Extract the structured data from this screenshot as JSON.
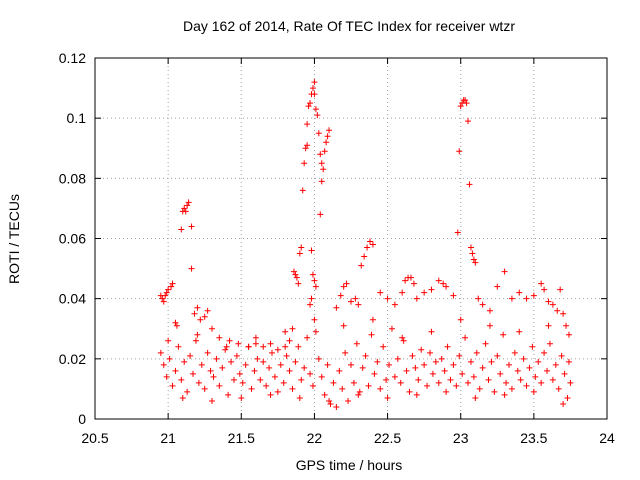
{
  "chart_data": {
    "type": "scatter",
    "title": "Day 162 of 2014, Rate Of TEC Index for receiver wtzr",
    "xlabel": "GPS time / hours",
    "ylabel": "ROTI / TECUs",
    "xlim": [
      20.5,
      24
    ],
    "ylim": [
      0,
      0.12
    ],
    "x_ticks": [
      20.5,
      21,
      21.5,
      22,
      22.5,
      23,
      23.5,
      24
    ],
    "x_tick_labels": [
      "20.5",
      "21",
      "21.5",
      "22",
      "22.5",
      "23",
      "23.5",
      "24"
    ],
    "y_ticks": [
      0,
      0.02,
      0.04,
      0.06,
      0.08,
      0.1,
      0.12
    ],
    "y_tick_labels": [
      "0",
      "0.02",
      "0.04",
      "0.06",
      "0.08",
      "0.1",
      "0.12"
    ],
    "grid": true,
    "marker": "+",
    "color": "#ff0000",
    "series": [
      {
        "name": "ROTI",
        "points": [
          [
            20.95,
            0.041
          ],
          [
            20.96,
            0.04
          ],
          [
            20.97,
            0.039
          ],
          [
            20.98,
            0.041
          ],
          [
            20.99,
            0.042
          ],
          [
            21.0,
            0.043
          ],
          [
            21.02,
            0.044
          ],
          [
            21.03,
            0.045
          ],
          [
            21.05,
            0.032
          ],
          [
            21.06,
            0.031
          ],
          [
            21.09,
            0.063
          ],
          [
            21.1,
            0.069
          ],
          [
            21.11,
            0.07
          ],
          [
            21.12,
            0.069
          ],
          [
            21.13,
            0.071
          ],
          [
            21.14,
            0.072
          ],
          [
            21.16,
            0.064
          ],
          [
            21.16,
            0.05
          ],
          [
            21.18,
            0.035
          ],
          [
            21.2,
            0.037
          ],
          [
            21.22,
            0.033
          ],
          [
            21.25,
            0.034
          ],
          [
            21.27,
            0.036
          ],
          [
            21.3,
            0.03
          ],
          [
            21.35,
            0.027
          ],
          [
            21.42,
            0.026
          ],
          [
            21.48,
            0.025
          ],
          [
            21.55,
            0.024
          ],
          [
            21.6,
            0.025
          ],
          [
            21.65,
            0.024
          ],
          [
            21.7,
            0.025
          ],
          [
            21.75,
            0.023
          ],
          [
            21.8,
            0.024
          ],
          [
            21.83,
            0.026
          ],
          [
            21.85,
            0.03
          ],
          [
            21.86,
            0.049
          ],
          [
            21.87,
            0.048
          ],
          [
            21.88,
            0.047
          ],
          [
            21.89,
            0.045
          ],
          [
            21.9,
            0.055
          ],
          [
            21.91,
            0.057
          ],
          [
            21.92,
            0.076
          ],
          [
            21.93,
            0.085
          ],
          [
            21.94,
            0.09
          ],
          [
            21.95,
            0.091
          ],
          [
            21.95,
            0.098
          ],
          [
            21.96,
            0.104
          ],
          [
            21.97,
            0.105
          ],
          [
            21.98,
            0.108
          ],
          [
            21.99,
            0.11
          ],
          [
            22.0,
            0.112
          ],
          [
            22.0,
            0.108
          ],
          [
            22.01,
            0.103
          ],
          [
            22.02,
            0.101
          ],
          [
            22.03,
            0.095
          ],
          [
            22.04,
            0.088
          ],
          [
            22.05,
            0.085
          ],
          [
            22.06,
            0.083
          ],
          [
            22.07,
            0.089
          ],
          [
            22.08,
            0.092
          ],
          [
            22.09,
            0.094
          ],
          [
            22.1,
            0.096
          ],
          [
            22.05,
            0.079
          ],
          [
            22.04,
            0.068
          ],
          [
            21.98,
            0.056
          ],
          [
            21.99,
            0.048
          ],
          [
            22.0,
            0.046
          ],
          [
            22.01,
            0.044
          ],
          [
            21.98,
            0.04
          ],
          [
            21.97,
            0.038
          ],
          [
            22.15,
            0.037
          ],
          [
            22.18,
            0.041
          ],
          [
            22.2,
            0.044
          ],
          [
            22.22,
            0.045
          ],
          [
            22.25,
            0.039
          ],
          [
            22.28,
            0.04
          ],
          [
            22.3,
            0.038
          ],
          [
            22.32,
            0.051
          ],
          [
            22.34,
            0.054
          ],
          [
            22.36,
            0.057
          ],
          [
            22.38,
            0.059
          ],
          [
            22.4,
            0.058
          ],
          [
            22.45,
            0.042
          ],
          [
            22.5,
            0.04
          ],
          [
            22.55,
            0.038
          ],
          [
            22.6,
            0.042
          ],
          [
            22.62,
            0.046
          ],
          [
            22.64,
            0.047
          ],
          [
            22.66,
            0.047
          ],
          [
            22.68,
            0.045
          ],
          [
            22.7,
            0.04
          ],
          [
            22.75,
            0.042
          ],
          [
            22.8,
            0.043
          ],
          [
            22.85,
            0.046
          ],
          [
            22.88,
            0.045
          ],
          [
            22.9,
            0.044
          ],
          [
            22.95,
            0.041
          ],
          [
            22.98,
            0.062
          ],
          [
            22.99,
            0.089
          ],
          [
            23.0,
            0.104
          ],
          [
            23.01,
            0.105
          ],
          [
            23.02,
            0.106
          ],
          [
            23.03,
            0.106
          ],
          [
            23.04,
            0.105
          ],
          [
            23.05,
            0.099
          ],
          [
            23.06,
            0.078
          ],
          [
            23.07,
            0.057
          ],
          [
            23.08,
            0.055
          ],
          [
            23.09,
            0.053
          ],
          [
            23.1,
            0.052
          ],
          [
            23.12,
            0.04
          ],
          [
            23.15,
            0.038
          ],
          [
            23.2,
            0.036
          ],
          [
            23.25,
            0.044
          ],
          [
            23.3,
            0.049
          ],
          [
            23.35,
            0.04
          ],
          [
            23.4,
            0.042
          ],
          [
            23.45,
            0.04
          ],
          [
            23.5,
            0.041
          ],
          [
            23.55,
            0.045
          ],
          [
            23.57,
            0.043
          ],
          [
            23.6,
            0.039
          ],
          [
            23.63,
            0.038
          ],
          [
            23.66,
            0.036
          ],
          [
            23.68,
            0.043
          ],
          [
            23.7,
            0.035
          ],
          [
            23.72,
            0.031
          ],
          [
            23.74,
            0.028
          ],
          [
            20.95,
            0.022
          ],
          [
            20.97,
            0.018
          ],
          [
            20.99,
            0.014
          ],
          [
            21.01,
            0.02
          ],
          [
            21.03,
            0.011
          ],
          [
            21.05,
            0.016
          ],
          [
            21.07,
            0.024
          ],
          [
            21.09,
            0.013
          ],
          [
            21.11,
            0.019
          ],
          [
            21.13,
            0.009
          ],
          [
            21.15,
            0.021
          ],
          [
            21.17,
            0.015
          ],
          [
            21.19,
            0.026
          ],
          [
            21.21,
            0.012
          ],
          [
            21.23,
            0.018
          ],
          [
            21.25,
            0.01
          ],
          [
            21.27,
            0.022
          ],
          [
            21.29,
            0.016
          ],
          [
            21.31,
            0.014
          ],
          [
            21.33,
            0.02
          ],
          [
            21.35,
            0.011
          ],
          [
            21.37,
            0.017
          ],
          [
            21.39,
            0.023
          ],
          [
            21.41,
            0.008
          ],
          [
            21.43,
            0.019
          ],
          [
            21.45,
            0.013
          ],
          [
            21.47,
            0.021
          ],
          [
            21.49,
            0.015
          ],
          [
            21.51,
            0.012
          ],
          [
            21.53,
            0.018
          ],
          [
            21.55,
            0.024
          ],
          [
            21.57,
            0.01
          ],
          [
            21.59,
            0.016
          ],
          [
            21.61,
            0.02
          ],
          [
            21.63,
            0.013
          ],
          [
            21.65,
            0.019
          ],
          [
            21.67,
            0.011
          ],
          [
            21.69,
            0.017
          ],
          [
            21.71,
            0.022
          ],
          [
            21.73,
            0.014
          ],
          [
            21.75,
            0.009
          ],
          [
            21.77,
            0.018
          ],
          [
            21.79,
            0.012
          ],
          [
            21.81,
            0.021
          ],
          [
            21.83,
            0.016
          ],
          [
            21.85,
            0.01
          ],
          [
            21.87,
            0.019
          ],
          [
            21.89,
            0.024
          ],
          [
            21.91,
            0.013
          ],
          [
            21.93,
            0.017
          ],
          [
            21.95,
            0.027
          ],
          [
            21.97,
            0.015
          ],
          [
            21.99,
            0.011
          ],
          [
            22.01,
            0.029
          ],
          [
            22.03,
            0.02
          ],
          [
            22.05,
            0.014
          ],
          [
            22.07,
            0.008
          ],
          [
            22.09,
            0.018
          ],
          [
            22.11,
            0.005
          ],
          [
            22.13,
            0.012
          ],
          [
            22.15,
            0.004
          ],
          [
            22.17,
            0.016
          ],
          [
            22.19,
            0.01
          ],
          [
            22.21,
            0.022
          ],
          [
            22.23,
            0.006
          ],
          [
            22.25,
            0.018
          ],
          [
            22.27,
            0.012
          ],
          [
            22.29,
            0.025
          ],
          [
            22.31,
            0.009
          ],
          [
            22.33,
            0.017
          ],
          [
            22.35,
            0.021
          ],
          [
            22.37,
            0.011
          ],
          [
            22.39,
            0.028
          ],
          [
            22.41,
            0.015
          ],
          [
            22.43,
            0.019
          ],
          [
            22.45,
            0.01
          ],
          [
            22.47,
            0.024
          ],
          [
            22.49,
            0.013
          ],
          [
            22.51,
            0.018
          ],
          [
            22.53,
            0.03
          ],
          [
            22.55,
            0.014
          ],
          [
            22.57,
            0.02
          ],
          [
            22.59,
            0.012
          ],
          [
            22.61,
            0.026
          ],
          [
            22.63,
            0.016
          ],
          [
            22.65,
            0.009
          ],
          [
            22.67,
            0.021
          ],
          [
            22.69,
            0.017
          ],
          [
            22.71,
            0.013
          ],
          [
            22.73,
            0.023
          ],
          [
            22.75,
            0.018
          ],
          [
            22.77,
            0.011
          ],
          [
            22.79,
            0.022
          ],
          [
            22.81,
            0.015
          ],
          [
            22.83,
            0.019
          ],
          [
            22.85,
            0.012
          ],
          [
            22.87,
            0.02
          ],
          [
            22.89,
            0.016
          ],
          [
            22.91,
            0.024
          ],
          [
            22.93,
            0.013
          ],
          [
            22.95,
            0.018
          ],
          [
            22.97,
            0.011
          ],
          [
            22.99,
            0.021
          ],
          [
            23.01,
            0.015
          ],
          [
            23.03,
            0.027
          ],
          [
            23.05,
            0.012
          ],
          [
            23.07,
            0.019
          ],
          [
            23.09,
            0.014
          ],
          [
            23.11,
            0.022
          ],
          [
            23.13,
            0.01
          ],
          [
            23.15,
            0.017
          ],
          [
            23.17,
            0.025
          ],
          [
            23.19,
            0.013
          ],
          [
            23.21,
            0.019
          ],
          [
            23.23,
            0.009
          ],
          [
            23.25,
            0.021
          ],
          [
            23.27,
            0.015
          ],
          [
            23.29,
            0.028
          ],
          [
            23.31,
            0.012
          ],
          [
            23.33,
            0.018
          ],
          [
            23.35,
            0.01
          ],
          [
            23.37,
            0.022
          ],
          [
            23.39,
            0.016
          ],
          [
            23.41,
            0.013
          ],
          [
            23.43,
            0.02
          ],
          [
            23.45,
            0.011
          ],
          [
            23.47,
            0.017
          ],
          [
            23.49,
            0.024
          ],
          [
            23.51,
            0.014
          ],
          [
            23.53,
            0.019
          ],
          [
            23.55,
            0.012
          ],
          [
            23.57,
            0.022
          ],
          [
            23.59,
            0.016
          ],
          [
            23.61,
            0.025
          ],
          [
            23.63,
            0.013
          ],
          [
            23.65,
            0.018
          ],
          [
            23.67,
            0.01
          ],
          [
            23.69,
            0.021
          ],
          [
            23.71,
            0.015
          ],
          [
            23.73,
            0.007
          ],
          [
            23.74,
            0.019
          ],
          [
            23.75,
            0.012
          ],
          [
            21.0,
            0.026
          ],
          [
            21.2,
            0.028
          ],
          [
            21.4,
            0.024
          ],
          [
            21.6,
            0.027
          ],
          [
            21.8,
            0.029
          ],
          [
            22.0,
            0.033
          ],
          [
            22.2,
            0.031
          ],
          [
            22.4,
            0.033
          ],
          [
            22.6,
            0.027
          ],
          [
            22.8,
            0.029
          ],
          [
            23.0,
            0.033
          ],
          [
            23.2,
            0.031
          ],
          [
            23.4,
            0.029
          ],
          [
            23.6,
            0.031
          ],
          [
            21.1,
            0.007
          ],
          [
            21.3,
            0.006
          ],
          [
            21.5,
            0.007
          ],
          [
            21.7,
            0.008
          ],
          [
            21.9,
            0.007
          ],
          [
            22.1,
            0.006
          ],
          [
            22.3,
            0.008
          ],
          [
            22.5,
            0.007
          ],
          [
            22.7,
            0.008
          ],
          [
            22.9,
            0.009
          ],
          [
            23.1,
            0.007
          ],
          [
            23.3,
            0.008
          ],
          [
            23.5,
            0.009
          ],
          [
            23.7,
            0.005
          ]
        ]
      }
    ]
  }
}
